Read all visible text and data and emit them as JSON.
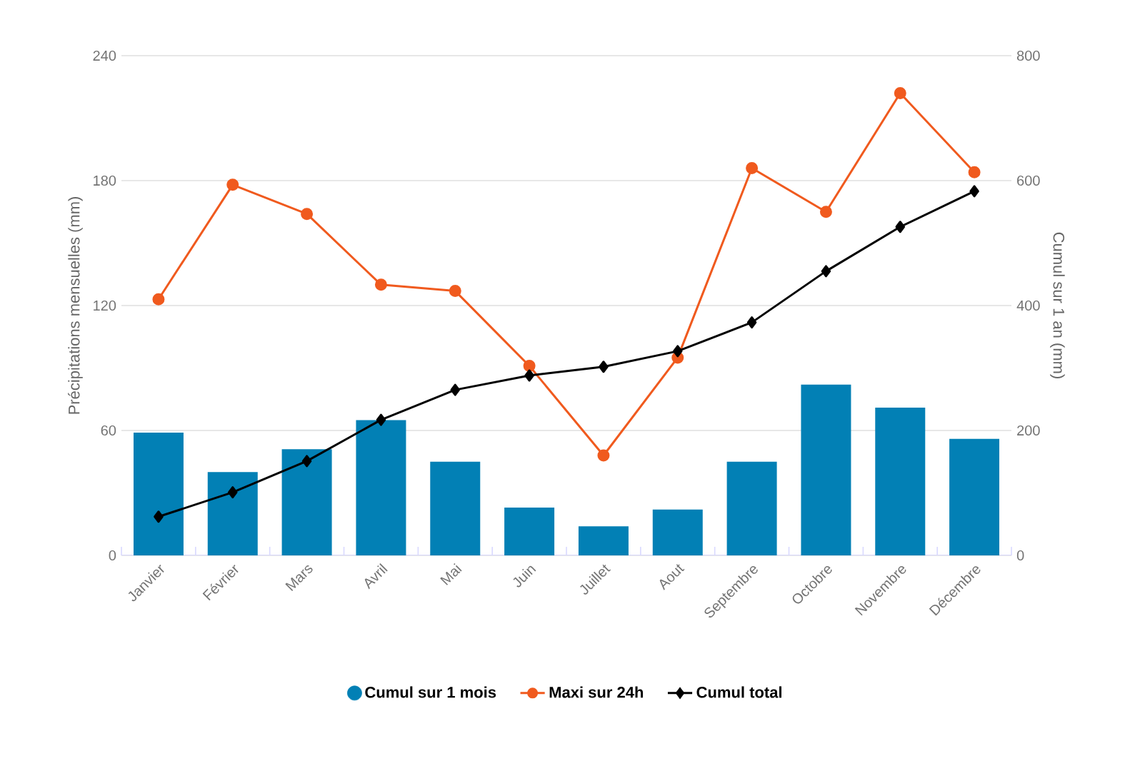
{
  "chart_data": {
    "type": "bar",
    "ylabel": "Précipitations mensuelles (mm)",
    "y2label": "Cumul sur 1 an (mm)",
    "categories": [
      "Janvier",
      "Février",
      "Mars",
      "Avril",
      "Mai",
      "Juin",
      "Juillet",
      "Aout",
      "Septembre",
      "Octobre",
      "Novembre",
      "Décembre"
    ],
    "series": [
      {
        "name": "Cumul sur 1 mois",
        "color": "#0280b5",
        "values": [
          59,
          40,
          51,
          65,
          45,
          23,
          14,
          22,
          45,
          82,
          71,
          56
        ]
      },
      {
        "name": "Maxi sur 24h",
        "type": "line",
        "marker": "circle",
        "color": "#f05a1e",
        "values": [
          123,
          178,
          164,
          130,
          127,
          91,
          48,
          95,
          186,
          165,
          222,
          184
        ]
      },
      {
        "name": "Cumul total",
        "type": "line",
        "marker": "diamond",
        "axis": "y2",
        "color": "#000000",
        "values": [
          62,
          101,
          151,
          217,
          265,
          288,
          302,
          327,
          373,
          455,
          526,
          583
        ]
      }
    ],
    "ylim": [
      0,
      240
    ],
    "yticks": [
      0,
      60,
      120,
      180,
      240
    ],
    "y2lim": [
      0,
      800
    ],
    "y2ticks": [
      0,
      200,
      400,
      600,
      800
    ],
    "grid": "y",
    "legend": "bottom"
  }
}
